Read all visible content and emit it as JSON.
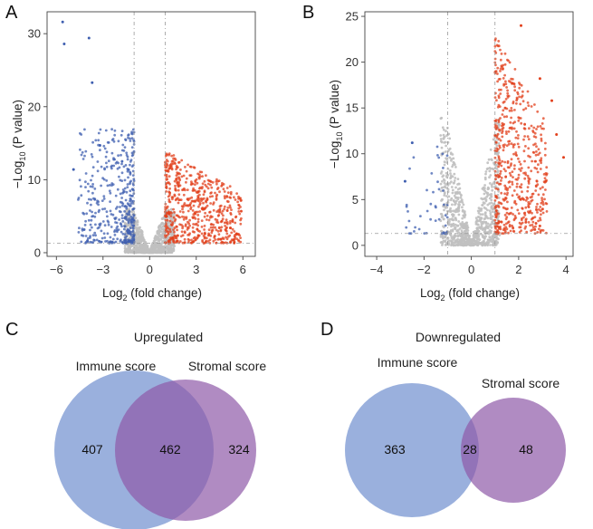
{
  "chart_data": [
    {
      "panel": "A",
      "type": "scatter",
      "xlabel_main": "Log",
      "xlabel_sub": "2",
      "xlabel_rest": " (fold change)",
      "ylabel_prefix": "−Log",
      "ylabel_sub": "10",
      "ylabel_rest": " (P value)",
      "xlim": [
        -6.6,
        6.8
      ],
      "ylim": [
        -0.5,
        33
      ],
      "xticks": [
        -6,
        -3,
        0,
        3,
        6
      ],
      "yticks": [
        0,
        10,
        20,
        30
      ],
      "fc_thresholds": [
        -1,
        1
      ],
      "p_threshold": 1.3,
      "series": [
        {
          "name": "down",
          "color": "#3f5fb0",
          "x_range": [
            -4.6,
            -1.0
          ],
          "y_max": 17,
          "count": 420,
          "outliers": [
            [
              -5.6,
              31.6
            ],
            [
              -5.5,
              28.6
            ],
            [
              -3.9,
              29.4
            ],
            [
              -3.7,
              23.3
            ],
            [
              -4.9,
              11.4
            ],
            [
              -3.2,
              14.7
            ]
          ]
        },
        {
          "name": "up",
          "color": "#e2401c",
          "x_range": [
            1.0,
            5.9
          ],
          "y_max": 14,
          "count": 620,
          "outliers": [
            [
              5.6,
              2.6
            ],
            [
              5.2,
              3.4
            ]
          ]
        },
        {
          "name": "ns",
          "color": "#c0c0c0",
          "x_range": [
            -1.6,
            1.6
          ],
          "y_max": 6,
          "count": 900
        }
      ]
    },
    {
      "panel": "B",
      "type": "scatter",
      "xlabel_main": "Log",
      "xlabel_sub": "2",
      "xlabel_rest": " (fold change)",
      "ylabel_prefix": "−Log",
      "ylabel_sub": "10",
      "ylabel_rest": " (P value)",
      "xlim": [
        -4.5,
        4.3
      ],
      "ylim": [
        -1.2,
        25.5
      ],
      "xticks": [
        -4,
        -2,
        0,
        2,
        4
      ],
      "yticks": [
        0,
        5,
        10,
        15,
        20,
        25
      ],
      "fc_thresholds": [
        -1,
        1
      ],
      "p_threshold": 1.3,
      "series": [
        {
          "name": "down",
          "color": "#3f5fb0",
          "x_range": [
            -2.8,
            -1.0
          ],
          "y_max": 11,
          "count": 45,
          "outliers": [
            [
              -2.5,
              11.2
            ],
            [
              -2.8,
              7.0
            ]
          ]
        },
        {
          "name": "up",
          "color": "#e2401c",
          "x_range": [
            1.0,
            3.2
          ],
          "y_max": 23,
          "count": 560,
          "outliers": [
            [
              2.1,
              24.0
            ],
            [
              2.9,
              18.2
            ],
            [
              3.9,
              9.6
            ],
            [
              3.6,
              12.1
            ],
            [
              3.4,
              15.8
            ]
          ]
        },
        {
          "name": "ns",
          "color": "#c0c0c0",
          "x_range": [
            -1.3,
            1.2
          ],
          "y_max": 14,
          "count": 900
        }
      ]
    },
    {
      "panel": "C",
      "type": "venn",
      "title": "Upregulated",
      "sets": [
        {
          "label": "Immune score",
          "color": "#6f8fcf"
        },
        {
          "label": "Stromal score",
          "color": "#8e5aa8"
        }
      ],
      "only_a": "407",
      "overlap": "462",
      "only_b": "324"
    },
    {
      "panel": "D",
      "type": "venn",
      "title": "Downregulated",
      "sets": [
        {
          "label": "Immune score",
          "color": "#6f8fcf"
        },
        {
          "label": "Stromal score",
          "color": "#8e5aa8"
        }
      ],
      "only_a": "363",
      "overlap": "28",
      "only_b": "48"
    }
  ]
}
